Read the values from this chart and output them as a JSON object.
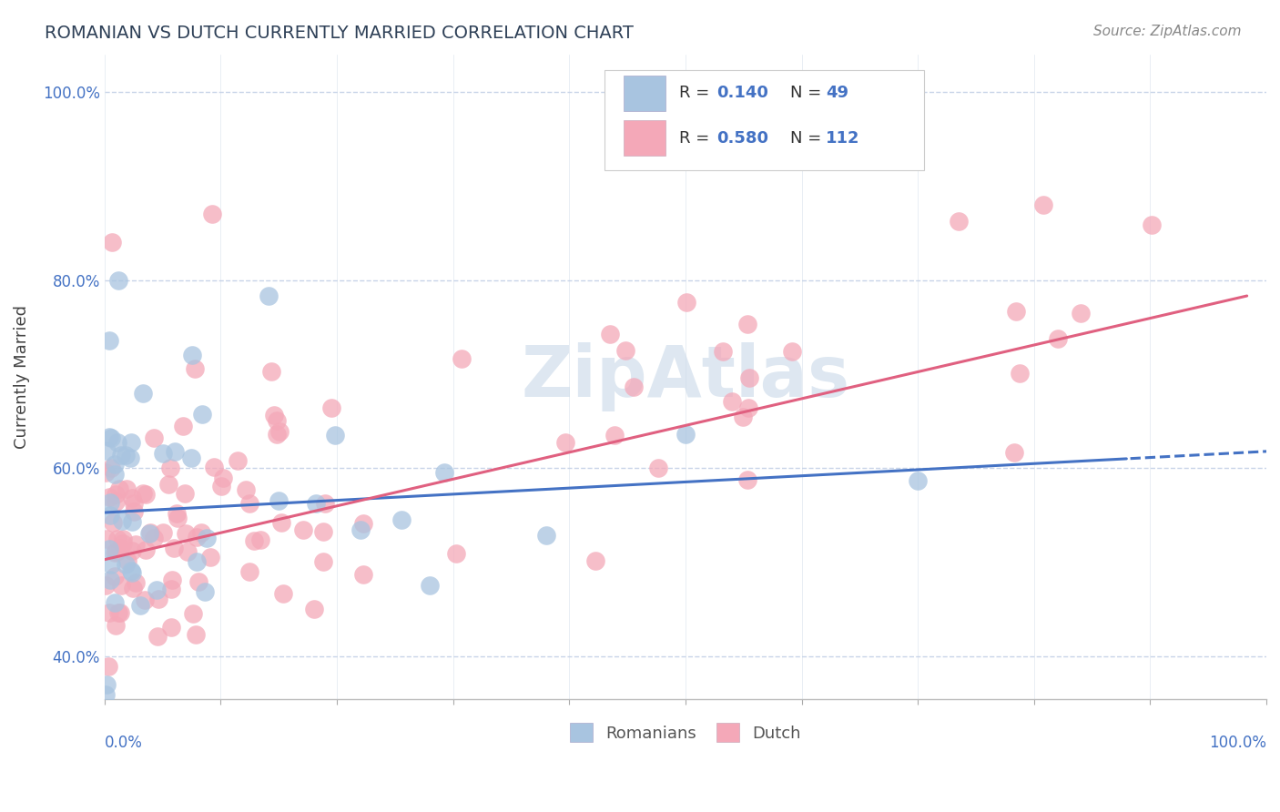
{
  "title": "ROMANIAN VS DUTCH CURRENTLY MARRIED CORRELATION CHART",
  "source": "Source: ZipAtlas.com",
  "ylabel": "Currently Married",
  "legend_romanian": "Romanians",
  "legend_dutch": "Dutch",
  "legend_r_romanian": "R = 0.140",
  "legend_n_romanian": "N = 49",
  "legend_r_dutch": "R = 0.580",
  "legend_n_dutch": "N = 112",
  "romanian_color": "#a8c4e0",
  "dutch_color": "#f4a8b8",
  "romanian_line_color": "#4472c4",
  "dutch_line_color": "#e06080",
  "title_color": "#2e4057",
  "axis_label_color": "#4472c4",
  "watermark_color": "#c8d8e8",
  "background_color": "#ffffff",
  "grid_color": "#c8d4e8",
  "xlim": [
    0.0,
    1.0
  ],
  "ylim": [
    0.355,
    1.04
  ],
  "y_ticks": [
    0.4,
    0.6,
    0.8,
    1.0
  ],
  "y_tick_labels": [
    "40.0%",
    "60.0%",
    "80.0%",
    "100.0%"
  ]
}
